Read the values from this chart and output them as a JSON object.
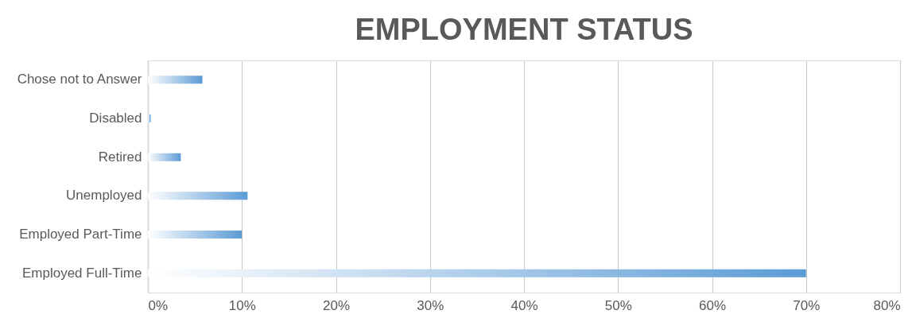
{
  "chart_data": {
    "type": "bar",
    "orientation": "horizontal",
    "title": "EMPLOYMENT STATUS",
    "categories": [
      "Chose not to Answer",
      "Disabled",
      "Retired",
      "Unemployed",
      "Employed Part-Time",
      "Employed Full-Time"
    ],
    "values": [
      5.8,
      0.3,
      3.5,
      10.6,
      10.0,
      70.0
    ],
    "color": "#5b9bd5",
    "xlim": [
      0,
      80
    ],
    "xticks": [
      {
        "value": 0,
        "label": "0%"
      },
      {
        "value": 10,
        "label": "10%"
      },
      {
        "value": 20,
        "label": "20%"
      },
      {
        "value": 30,
        "label": "30%"
      },
      {
        "value": 40,
        "label": "40%"
      },
      {
        "value": 50,
        "label": "50%"
      },
      {
        "value": 60,
        "label": "60%"
      },
      {
        "value": 70,
        "label": "70%"
      },
      {
        "value": 80,
        "label": "80%"
      }
    ],
    "grid": "x"
  }
}
